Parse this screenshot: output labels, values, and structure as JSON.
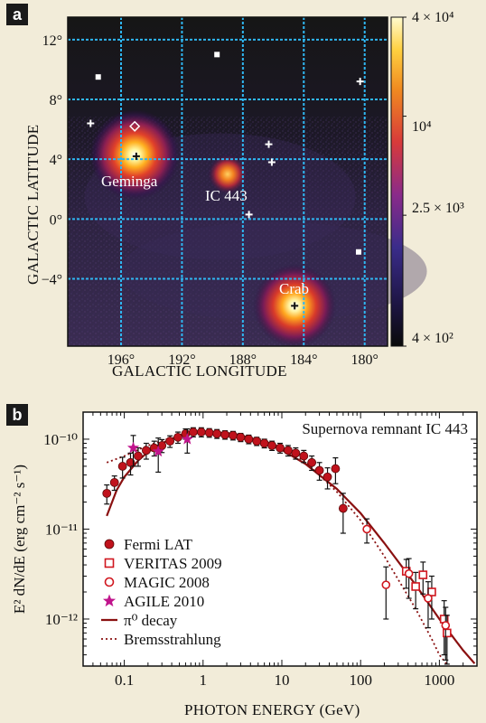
{
  "chart_data": [
    {
      "panel_label": "a",
      "type": "heatmap",
      "xlabel": "GALACTIC LONGITUDE",
      "ylabel": "GALACTIC LATITUDE",
      "x_ticks": [
        "196°",
        "192°",
        "188°",
        "184°",
        "180°"
      ],
      "y_ticks": [
        "12°",
        "8°",
        "4°",
        "0°",
        "−4°"
      ],
      "x_tick_values": [
        196,
        192,
        188,
        184,
        180
      ],
      "y_tick_values": [
        12,
        8,
        4,
        0,
        -4
      ],
      "xlim": [
        199.5,
        178.5
      ],
      "ylim": [
        -8.5,
        13.5
      ],
      "colorbar": {
        "labels": [
          "4 × 10⁴",
          "10⁴",
          "2.5 × 10³",
          "4 × 10²"
        ],
        "values": [
          40000,
          10000,
          2500,
          400
        ],
        "scale": "log"
      },
      "sources": [
        {
          "name": "Geminga",
          "l": 195.1,
          "b": 4.3
        },
        {
          "name": "IC 443",
          "l": 189.0,
          "b": 3.0
        },
        {
          "name": "Crab",
          "l": 184.6,
          "b": -5.8
        }
      ],
      "grid": true
    },
    {
      "panel_label": "b",
      "type": "scatter",
      "title": "Supernova remnant IC 443",
      "xlabel": "PHOTON ENERGY (GeV)",
      "ylabel": "E² dN/dE (erg cm⁻² s⁻¹)",
      "x_scale": "log",
      "y_scale": "log",
      "xlim": [
        0.03,
        3000
      ],
      "ylim": [
        3e-13,
        2e-10
      ],
      "x_ticks": [
        "0.1",
        "1",
        "10",
        "100",
        "1000"
      ],
      "x_tick_values": [
        0.1,
        1,
        10,
        100,
        1000
      ],
      "y_ticks": [
        "10⁻¹⁰",
        "10⁻¹¹",
        "10⁻¹²"
      ],
      "y_tick_values": [
        1e-10,
        1e-11,
        1e-12
      ],
      "legend_position": "bottom-left",
      "series": [
        {
          "name": "Fermi LAT",
          "marker": "filled-circle",
          "color": "#c0121c",
          "x": [
            0.06,
            0.075,
            0.095,
            0.12,
            0.15,
            0.19,
            0.24,
            0.3,
            0.38,
            0.48,
            0.6,
            0.75,
            0.95,
            1.2,
            1.5,
            1.9,
            2.4,
            3.0,
            3.8,
            4.8,
            6.0,
            7.5,
            9.5,
            12,
            15,
            19,
            24,
            30,
            38,
            48,
            60
          ],
          "y": [
            2.5e-11,
            3.3e-11,
            5e-11,
            5.5e-11,
            6.5e-11,
            7.5e-11,
            8e-11,
            8.5e-11,
            9.5e-11,
            1.05e-10,
            1.15e-10,
            1.2e-10,
            1.2e-10,
            1.18e-10,
            1.15e-10,
            1.12e-10,
            1.1e-10,
            1.05e-10,
            1e-10,
            9.5e-11,
            9e-11,
            8.5e-11,
            8e-11,
            7.5e-11,
            7e-11,
            6.5e-11,
            5.5e-11,
            4.5e-11,
            3.8e-11,
            4.7e-11,
            1.7e-11
          ],
          "y_err": [
            6e-12,
            6e-12,
            1.3e-11,
            1.5e-11,
            1.5e-11,
            1.5e-11,
            1.5e-11,
            1.4e-11,
            1.4e-11,
            1.5e-11,
            1.5e-11,
            1.4e-11,
            1.4e-11,
            1.3e-11,
            1.3e-11,
            1.2e-11,
            1.2e-11,
            1.1e-11,
            1.1e-11,
            1e-11,
            1e-11,
            1e-11,
            1e-11,
            1e-11,
            1e-11,
            1e-11,
            1e-11,
            1e-11,
            1e-11,
            1.5e-11,
            8e-12
          ]
        },
        {
          "name": "VERITAS 2009",
          "marker": "open-square",
          "color": "#d0161e",
          "x": [
            380,
            500,
            620,
            800,
            1150,
            1250
          ],
          "y": [
            3.4e-12,
            2.3e-12,
            3.1e-12,
            2e-12,
            1e-12,
            7e-13
          ],
          "y_err": [
            1.2e-12,
            1e-12,
            1.2e-12,
            1e-12,
            6e-13,
            4e-13
          ]
        },
        {
          "name": "MAGIC 2008",
          "marker": "open-circle",
          "color": "#d0161e",
          "x": [
            120,
            210,
            410,
            720,
            1200
          ],
          "y": [
            1e-11,
            2.4e-12,
            3.2e-12,
            1.7e-12,
            8.5e-13
          ],
          "y_err": [
            3e-12,
            1.4e-12,
            1.5e-12,
            9e-13,
            5e-13
          ]
        },
        {
          "name": "AGILE 2010",
          "marker": "star",
          "color": "#c0148c",
          "x": [
            0.13,
            0.27,
            0.63
          ],
          "y": [
            8e-11,
            7.3e-11,
            1e-10
          ],
          "y_err": [
            3e-11,
            3e-11,
            3e-11
          ]
        }
      ],
      "models": [
        {
          "name": "π⁰ decay",
          "style": "solid",
          "color": "#8a1010",
          "x": [
            0.06,
            0.08,
            0.1,
            0.15,
            0.2,
            0.3,
            0.5,
            0.7,
            1,
            1.5,
            2,
            3,
            5,
            10,
            20,
            50,
            100,
            200,
            500,
            1000,
            2000,
            2800
          ],
          "y": [
            1.4e-11,
            2.7e-11,
            3.8e-11,
            5.8e-11,
            7.2e-11,
            9e-11,
            1.1e-10,
            1.2e-10,
            1.22e-10,
            1.2e-10,
            1.16e-10,
            1.1e-10,
            9.8e-11,
            7.6e-11,
            5.3e-11,
            2.8e-11,
            1.5e-11,
            7e-12,
            2.4e-12,
            1e-12,
            4.5e-13,
            3.2e-13
          ]
        },
        {
          "name": "Bremsstrahlung",
          "style": "dotted",
          "color": "#8a1010",
          "x": [
            0.06,
            0.1,
            0.2,
            0.3,
            0.5,
            0.7,
            1,
            1.5,
            2,
            3,
            5,
            10,
            20,
            50,
            100,
            200,
            500,
            800,
            1000,
            1300
          ],
          "y": [
            5.5e-11,
            6.5e-11,
            8.5e-11,
            9.6e-11,
            1.1e-10,
            1.15e-10,
            1.2e-10,
            1.2e-10,
            1.18e-10,
            1.12e-10,
            1.02e-10,
            8e-11,
            5.6e-11,
            2.6e-11,
            1.25e-11,
            5e-12,
            1.3e-12,
            6e-13,
            4e-13,
            3e-13
          ]
        }
      ],
      "grid": false
    }
  ]
}
